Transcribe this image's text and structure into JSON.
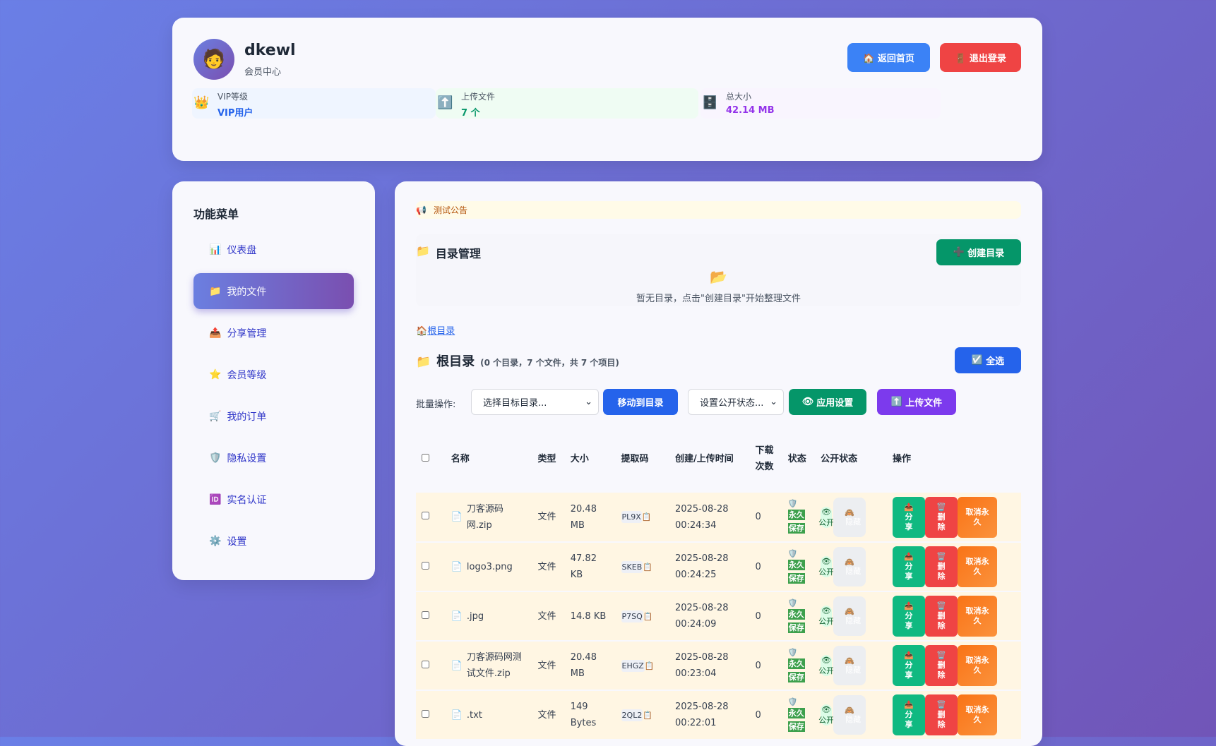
{
  "header": {
    "username": "dkewl",
    "subtitle": "会员中心",
    "avatar_icon": "person-icon",
    "home_button": "🏠 返回首页",
    "logout_button": "🚪 退出登录",
    "stats": [
      {
        "icon": "👑",
        "label": "VIP等级",
        "value": "VIP用户",
        "color": "#2563eb",
        "bg": "#eff5ff"
      },
      {
        "icon": "⬆️",
        "label": "上传文件",
        "value": "7 个",
        "color": "#059669",
        "bg": "#effcf3"
      },
      {
        "icon": "🗄️",
        "label": "总大小",
        "value": "42.14 MB",
        "color": "#9333ea",
        "bg": "#f9f5fe"
      }
    ]
  },
  "sidebar": {
    "title": "功能菜单",
    "items": [
      {
        "icon": "📊",
        "label": "仪表盘"
      },
      {
        "icon": "📁",
        "label": "我的文件",
        "active": true
      },
      {
        "icon": "📤",
        "label": "分享管理"
      },
      {
        "icon": "⭐",
        "label": "会员等级"
      },
      {
        "icon": "🛒",
        "label": "我的订单"
      },
      {
        "icon": "🛡️",
        "label": "隐私设置"
      },
      {
        "icon": "🆔",
        "label": "实名认证"
      },
      {
        "icon": "⚙️",
        "label": "设置"
      }
    ]
  },
  "main": {
    "notice": "测试公告",
    "dir_title": "目录管理",
    "create_dir": "创建目录",
    "empty_text": "暂无目录，点击\"创建目录\"开始整理文件",
    "breadcrumb": "根目录",
    "folder_title": "根目录",
    "folder_summary": "(0 个目录，7 个文件，共 7 个项目)",
    "select_all": "全选",
    "batch_label": "批量操作:",
    "target_select": "选择目标目录...",
    "move_button": "移动到目录",
    "public_select": "设置公开状态...",
    "apply_button": "应用设置",
    "upload_button": "上传文件",
    "columns": [
      "名称",
      "类型",
      "大小",
      "提取码",
      "创建/上传时间",
      "下载次数",
      "状态",
      "公开状态",
      "操作"
    ],
    "rows": [
      {
        "name": "刀客源码网.zip",
        "type": "文件",
        "size": "20.48 MB",
        "code": "PL9X",
        "time": "2025-08-28 00:24:34",
        "downloads": "0"
      },
      {
        "name": "logo3.png",
        "type": "文件",
        "size": "47.82 KB",
        "code": "SKEB",
        "time": "2025-08-28 00:24:25",
        "downloads": "0"
      },
      {
        "name": ".jpg",
        "type": "文件",
        "size": "14.8 KB",
        "code": "P7SQ",
        "time": "2025-08-28 00:24:09",
        "downloads": "0"
      },
      {
        "name": "刀客源码网测试文件.zip",
        "type": "文件",
        "size": "20.48 MB",
        "code": "EHGZ",
        "time": "2025-08-28 00:23:04",
        "downloads": "0"
      },
      {
        "name": ".txt",
        "type": "文件",
        "size": "149 Bytes",
        "code": "2QL2",
        "time": "2025-08-28 00:22:01",
        "downloads": "0"
      }
    ],
    "status_tag": [
      "永久",
      "保存"
    ],
    "public_label": "公开",
    "hide_label": "隐藏",
    "share_label": "分享",
    "delete_label": "删除",
    "unperm_label": "取消永久"
  }
}
